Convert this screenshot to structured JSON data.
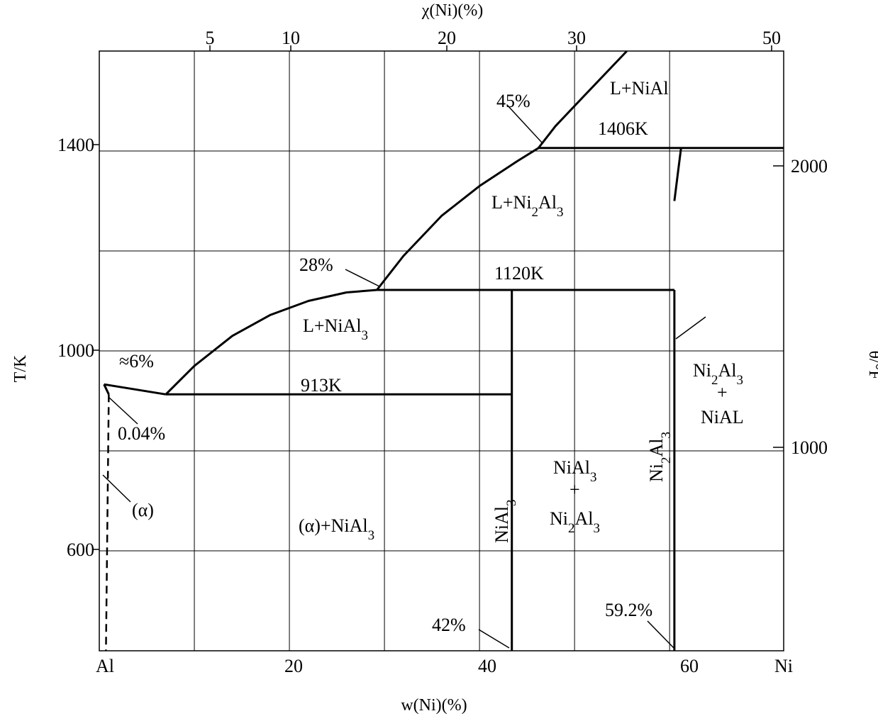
{
  "chart_data": {
    "type": "line",
    "title": "",
    "xlabel": "w(Ni)(%)",
    "x2label": "χ(Ni)(%)",
    "ylabel": "T/K",
    "y2label": "θ/°F",
    "xlim": [
      0,
      72
    ],
    "ylim": [
      400,
      1600
    ],
    "x_ticks": [
      "Al",
      "20",
      "40",
      "60",
      "Ni"
    ],
    "x2_ticks": [
      "5",
      "10",
      "20",
      "30",
      "50"
    ],
    "y_ticks": [
      "600",
      "1000",
      "1400"
    ],
    "y2_ticks": [
      "1000",
      "2000"
    ],
    "grid": true,
    "series": [
      {
        "values": [
          [
            7.0,
            913
          ],
          [
            10,
            970
          ],
          [
            14,
            1030
          ],
          [
            18,
            1072
          ],
          [
            22,
            1100
          ],
          [
            26,
            1117
          ],
          [
            29.2,
            1122
          ]
        ]
      },
      {
        "values": [
          [
            29.2,
            1122
          ],
          [
            32,
            1190
          ],
          [
            36,
            1270
          ],
          [
            40,
            1330
          ],
          [
            44,
            1380
          ],
          [
            46.2,
            1406
          ]
        ]
      },
      {
        "values": [
          [
            46.2,
            1406
          ],
          [
            48,
            1450
          ],
          [
            51,
            1510
          ],
          [
            55.5,
            1600
          ]
        ]
      },
      {
        "values": [
          [
            0.5,
            933
          ],
          [
            7.0,
            913
          ]
        ]
      },
      {
        "values": [
          [
            0.5,
            933
          ],
          [
            1.0,
            913
          ]
        ]
      },
      {
        "values": [
          [
            1.0,
            913
          ],
          [
            0.7,
            400
          ]
        ]
      },
      {
        "values": [
          [
            7.0,
            913
          ],
          [
            43.4,
            913
          ]
        ]
      },
      {
        "values": [
          [
            29.2,
            1122
          ],
          [
            60.5,
            1122
          ]
        ]
      },
      {
        "values": [
          [
            46.2,
            1406
          ],
          [
            72,
            1406
          ]
        ]
      },
      {
        "values": [
          [
            43.4,
            1122
          ],
          [
            43.4,
            400
          ]
        ]
      },
      {
        "values": [
          [
            60.5,
            1122
          ],
          [
            60.5,
            400
          ]
        ]
      },
      {
        "values": [
          [
            60.5,
            1300
          ],
          [
            60.9,
            1360
          ],
          [
            61.2,
            1406
          ]
        ]
      }
    ],
    "annotations": [
      {
        "text": "45%"
      },
      {
        "text": "1406K"
      },
      {
        "text": "L+NiAl"
      },
      {
        "text": "L+Ni",
        "sub1": "2",
        "mid": "Al",
        "sub2": "3"
      },
      {
        "text": "28%"
      },
      {
        "text": "1120K"
      },
      {
        "text": "L+NiAl",
        "sub2": "3"
      },
      {
        "text": "≈6%"
      },
      {
        "text": "913K"
      },
      {
        "text": "0.04%"
      },
      {
        "text": "(α)"
      },
      {
        "text": "(α)+NiAl",
        "sub2": "3"
      },
      {
        "text": "NiAl",
        "sub2": "3"
      },
      {
        "text": "NiAl",
        "sub2": "3"
      },
      {
        "text": "+"
      },
      {
        "text": "Ni",
        "sub1": "2",
        "mid": "Al",
        "sub2": "3"
      },
      {
        "text": "Ni",
        "sub1": "2",
        "mid": "Al",
        "sub2": "3"
      },
      {
        "text": "Ni",
        "sub1": "2",
        "mid": "Al",
        "sub2": "3"
      },
      {
        "text": "+"
      },
      {
        "text": "NiAL"
      },
      {
        "text": "42%"
      },
      {
        "text": "59.2%"
      }
    ]
  }
}
